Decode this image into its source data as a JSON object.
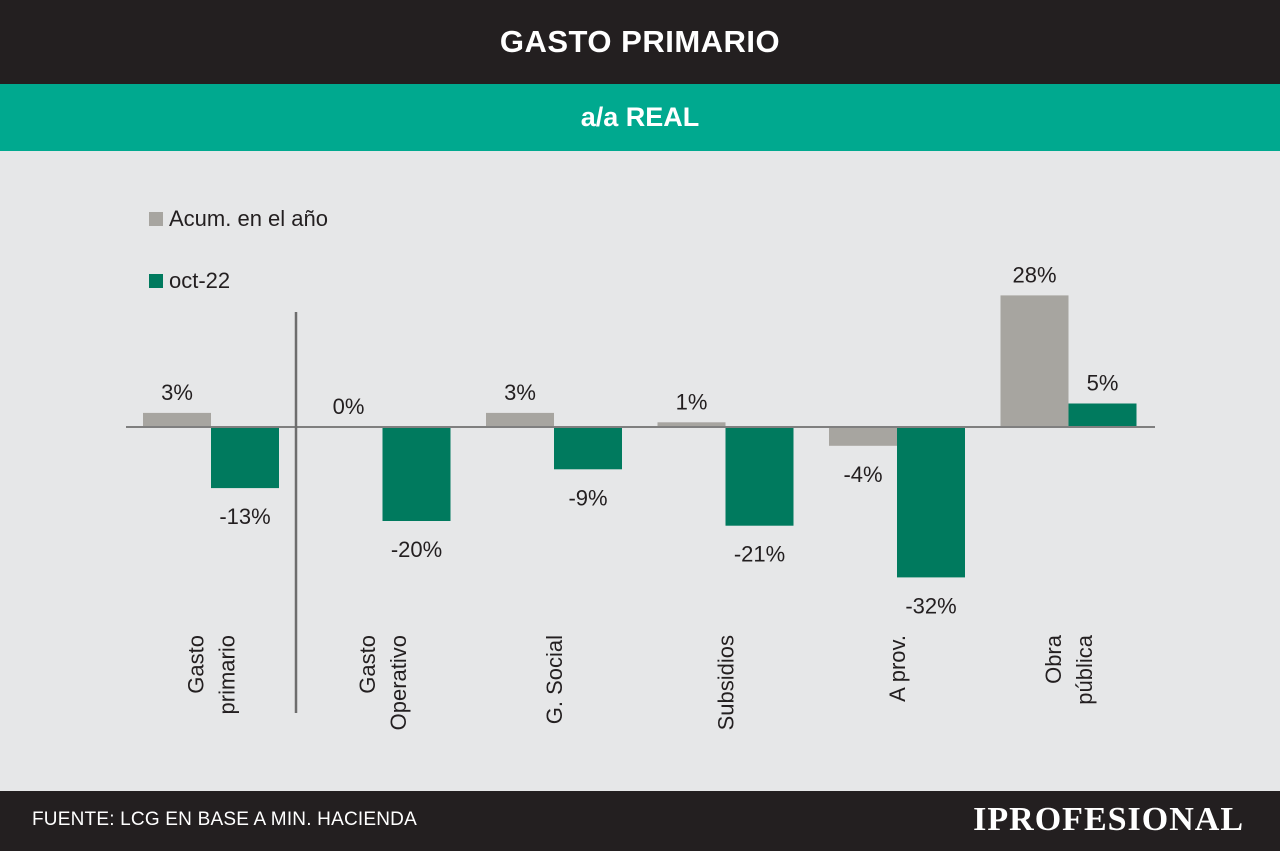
{
  "header": {
    "title": "GASTO PRIMARIO",
    "subtitle": "a/a REAL"
  },
  "footer": {
    "source": "FUENTE: LCG EN BASE A MIN. HACIENDA",
    "brand": "IPROFESIONAL"
  },
  "colors": {
    "series_acum": "#a7a5a0",
    "series_oct": "#007a5e",
    "header_bg": "#231f20",
    "accent_bar": "#00a98f",
    "chart_bg": "#e6e7e8"
  },
  "chart_data": {
    "type": "bar",
    "categories": [
      [
        "Gasto",
        "primario"
      ],
      [
        "Gasto",
        "Operativo"
      ],
      [
        "G. Social"
      ],
      [
        "Subsidios"
      ],
      [
        "A prov."
      ],
      [
        "Obra",
        "pública"
      ]
    ],
    "series": [
      {
        "name": "Acum. en el año",
        "values": [
          3,
          0,
          3,
          1,
          -4,
          28
        ]
      },
      {
        "name": "oct-22",
        "values": [
          -13,
          -20,
          -9,
          -21,
          -32,
          5
        ]
      }
    ],
    "data_labels": [
      [
        "3%",
        "0%",
        "3%",
        "1%",
        "-4%",
        "28%"
      ],
      [
        "-13%",
        "-20%",
        "-9%",
        "-21%",
        "-32%",
        "5%"
      ]
    ],
    "legend": [
      "Acum. en el año",
      "oct-22"
    ],
    "legend_position": "top-left",
    "ylim": [
      -32,
      28
    ],
    "grid": false
  }
}
